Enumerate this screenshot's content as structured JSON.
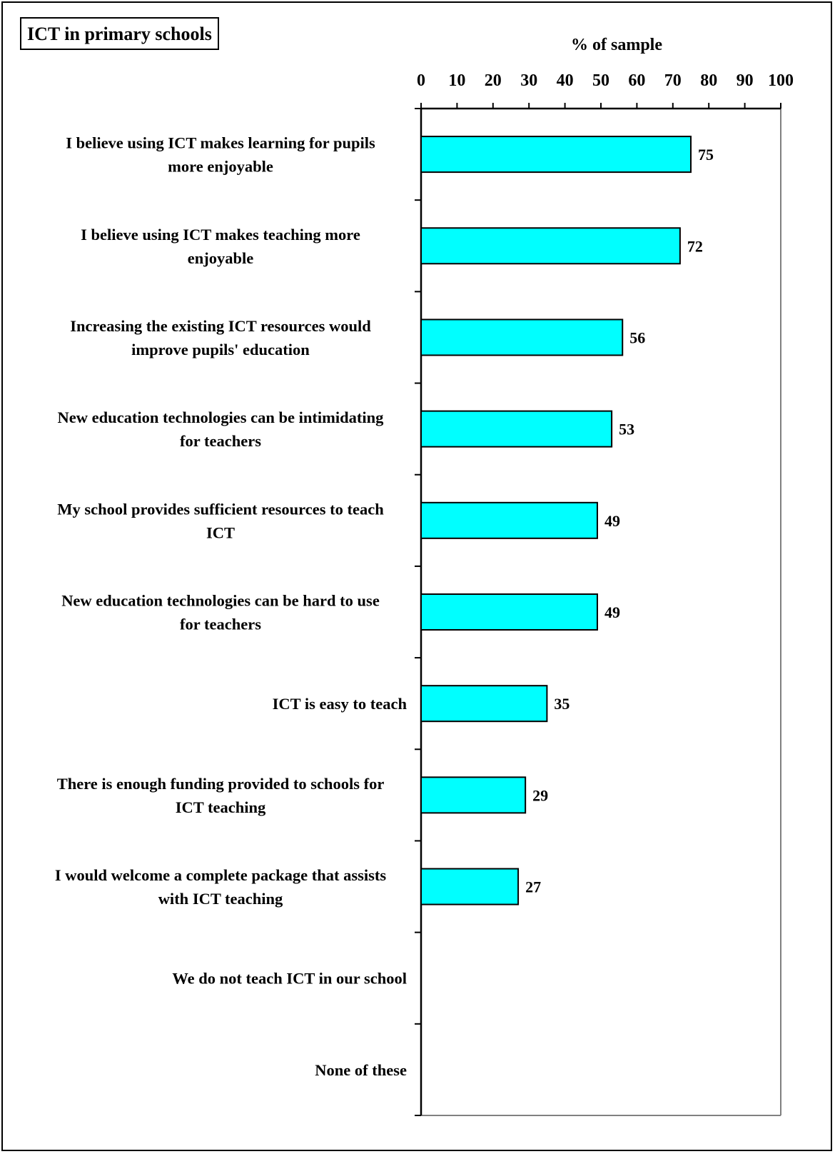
{
  "chart_data": {
    "type": "bar",
    "orientation": "horizontal",
    "title": "ICT in primary schools",
    "xlabel": "% of sample",
    "ylabel": "",
    "xlim": [
      0,
      100
    ],
    "x_ticks": [
      "0",
      "10",
      "20",
      "30",
      "40",
      "50",
      "60",
      "70",
      "80",
      "90",
      "100"
    ],
    "grid": false,
    "bar_color": "#00FFFF",
    "categories": [
      [
        "I believe using ICT makes learning for pupils",
        "more enjoyable"
      ],
      [
        "I believe using ICT makes teaching more",
        "enjoyable"
      ],
      [
        "Increasing the existing ICT resources would",
        "improve pupils' education"
      ],
      [
        "New education technologies can be intimidating",
        "for teachers"
      ],
      [
        "My school provides sufficient resources to teach",
        "ICT"
      ],
      [
        "New education technologies can be hard to use",
        "for teachers"
      ],
      [
        "ICT is easy to teach"
      ],
      [
        "There is enough funding provided to schools for",
        "ICT teaching"
      ],
      [
        "I would welcome a complete package that assists",
        "with ICT teaching"
      ],
      [
        "We do not teach ICT in our school"
      ],
      [
        "None of these"
      ]
    ],
    "values": [
      75,
      72,
      56,
      53,
      49,
      49,
      35,
      29,
      27,
      null,
      null
    ],
    "data_labels": [
      "75",
      "72",
      "56",
      "53",
      "49",
      "49",
      "35",
      "29",
      "27",
      "",
      ""
    ]
  }
}
